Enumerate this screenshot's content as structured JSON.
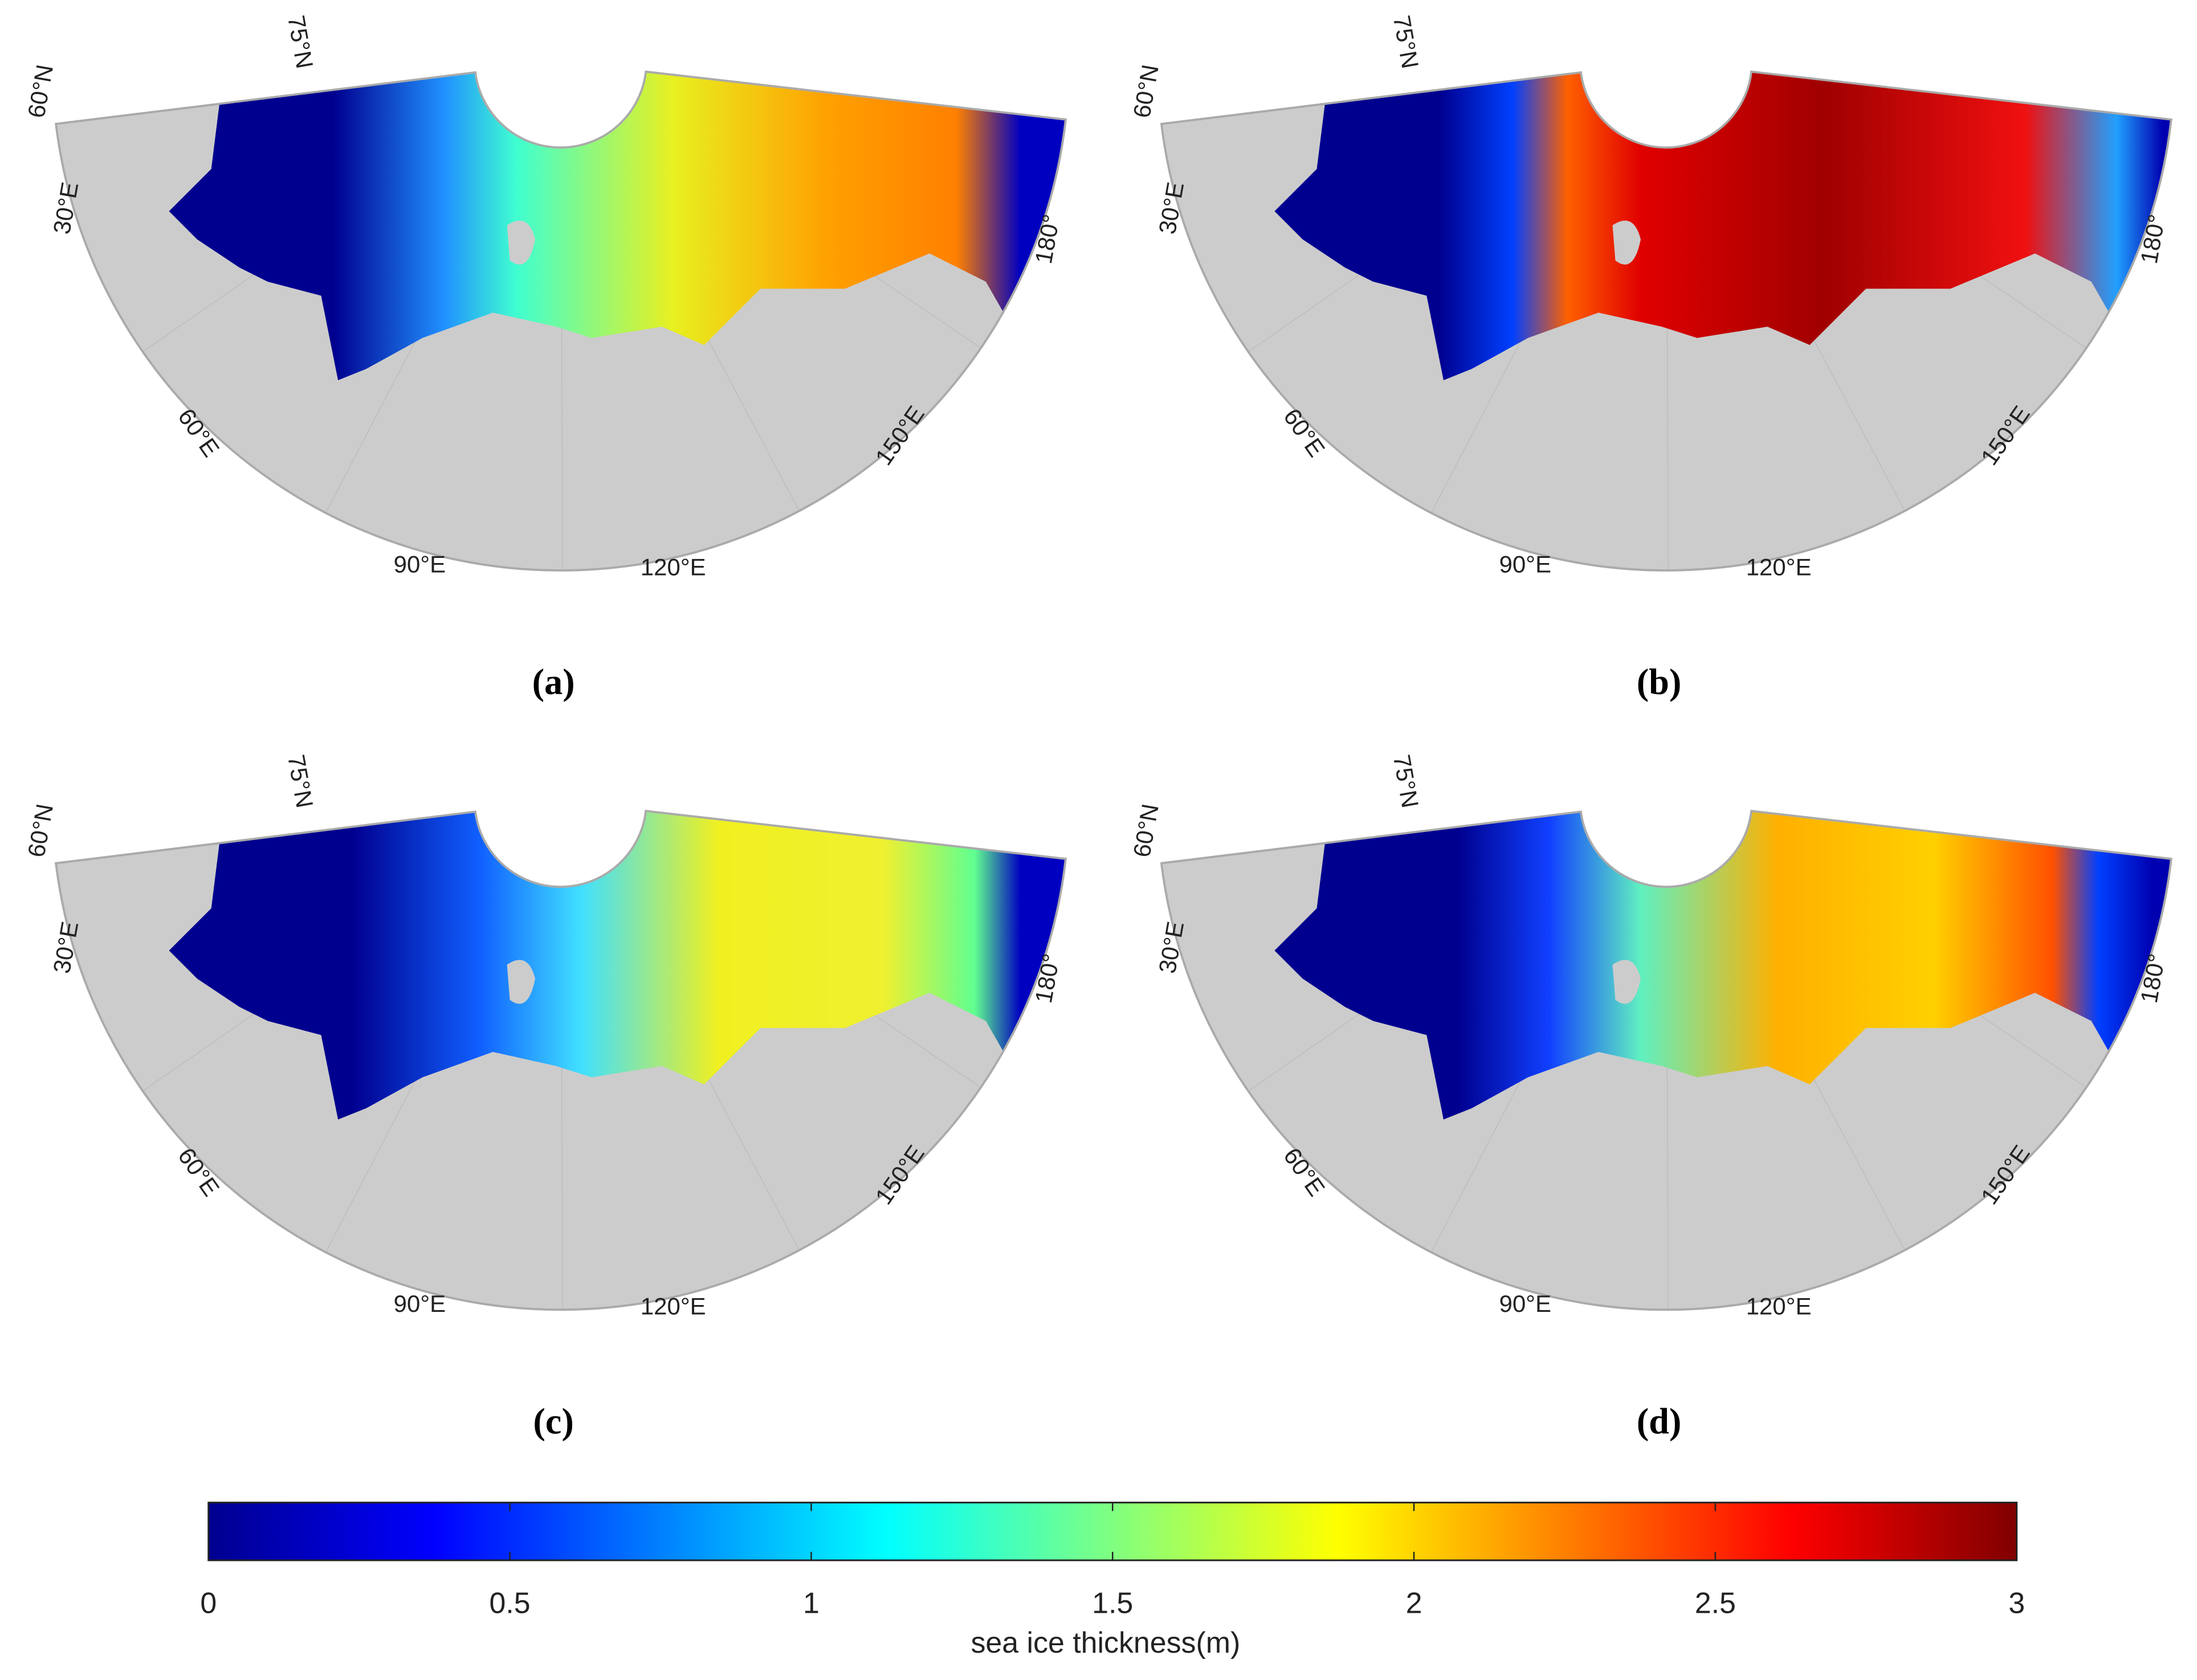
{
  "panels": [
    {
      "label": "(a)",
      "graticule_labels": [
        "60°N",
        "75°N",
        "30°E",
        "60°E",
        "90°E",
        "120°E",
        "150°E",
        "180°"
      ]
    },
    {
      "label": "(b)",
      "graticule_labels": [
        "60°N",
        "75°N",
        "30°E",
        "60°E",
        "90°E",
        "120°E",
        "150°E",
        "180°"
      ]
    },
    {
      "label": "(c)",
      "graticule_labels": [
        "60°N",
        "75°N",
        "30°E",
        "60°E",
        "90°E",
        "120°E",
        "150°E",
        "180°"
      ]
    },
    {
      "label": "(d)",
      "graticule_labels": [
        "60°N",
        "75°N",
        "30°E",
        "60°E",
        "90°E",
        "120°E",
        "150°E",
        "180°"
      ]
    }
  ],
  "colorbar": {
    "label": "sea ice thickness(m)",
    "lim": [
      0,
      3
    ],
    "ticks": [
      0,
      0.5,
      1,
      1.5,
      2,
      2.5,
      3
    ],
    "colors": [
      "#00008f",
      "#0000ff",
      "#0080ff",
      "#00ffff",
      "#80ff80",
      "#ffff00",
      "#ff8000",
      "#ff0000",
      "#800000"
    ]
  }
}
